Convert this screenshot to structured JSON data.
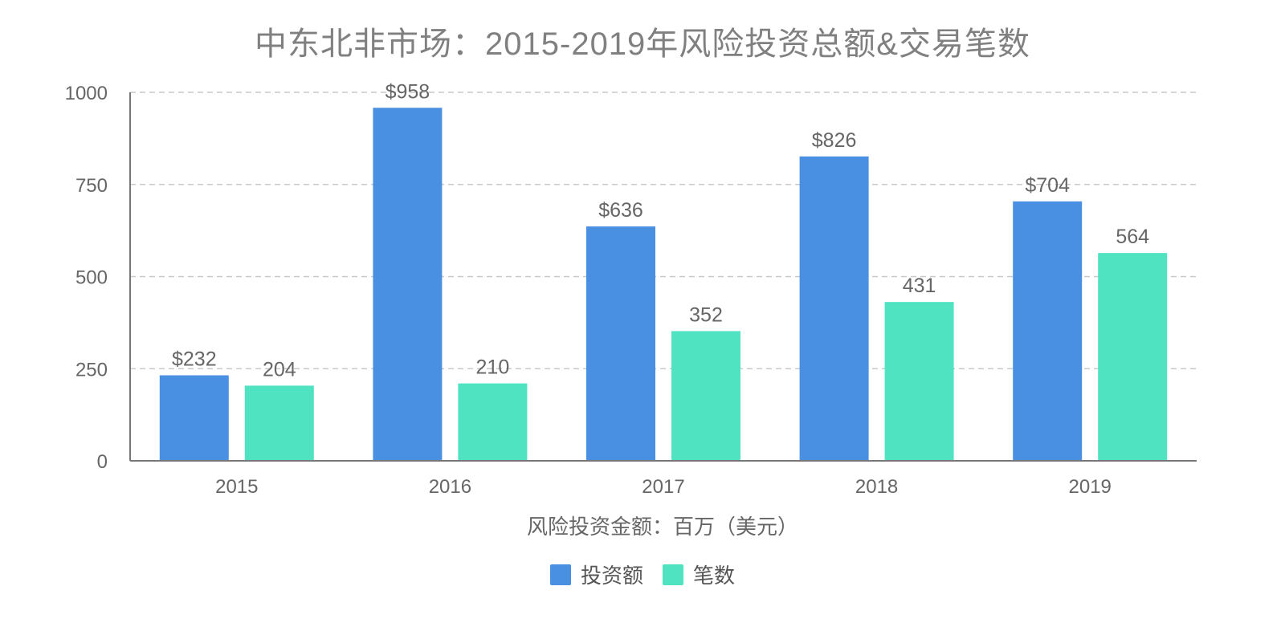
{
  "chart_data": {
    "type": "bar",
    "title": "中东北非市场：2015-2019年风险投资总额&交易笔数",
    "xlabel": "风险投资金额：百万（美元）",
    "categories": [
      "2015",
      "2016",
      "2017",
      "2018",
      "2019"
    ],
    "series": [
      {
        "name": "投资额",
        "color": "#4a90e2",
        "values": [
          232,
          958,
          636,
          826,
          704
        ],
        "labels": [
          "$232",
          "$958",
          "$636",
          "$826",
          "$704"
        ]
      },
      {
        "name": "笔数",
        "color": "#50e3c2",
        "values": [
          204,
          210,
          352,
          431,
          564
        ],
        "labels": [
          "204",
          "210",
          "352",
          "431",
          "564"
        ]
      }
    ],
    "ylim": [
      0,
      1000
    ],
    "yticks": [
      0,
      250,
      500,
      750,
      1000
    ],
    "grid": true,
    "legend": "bottom"
  }
}
